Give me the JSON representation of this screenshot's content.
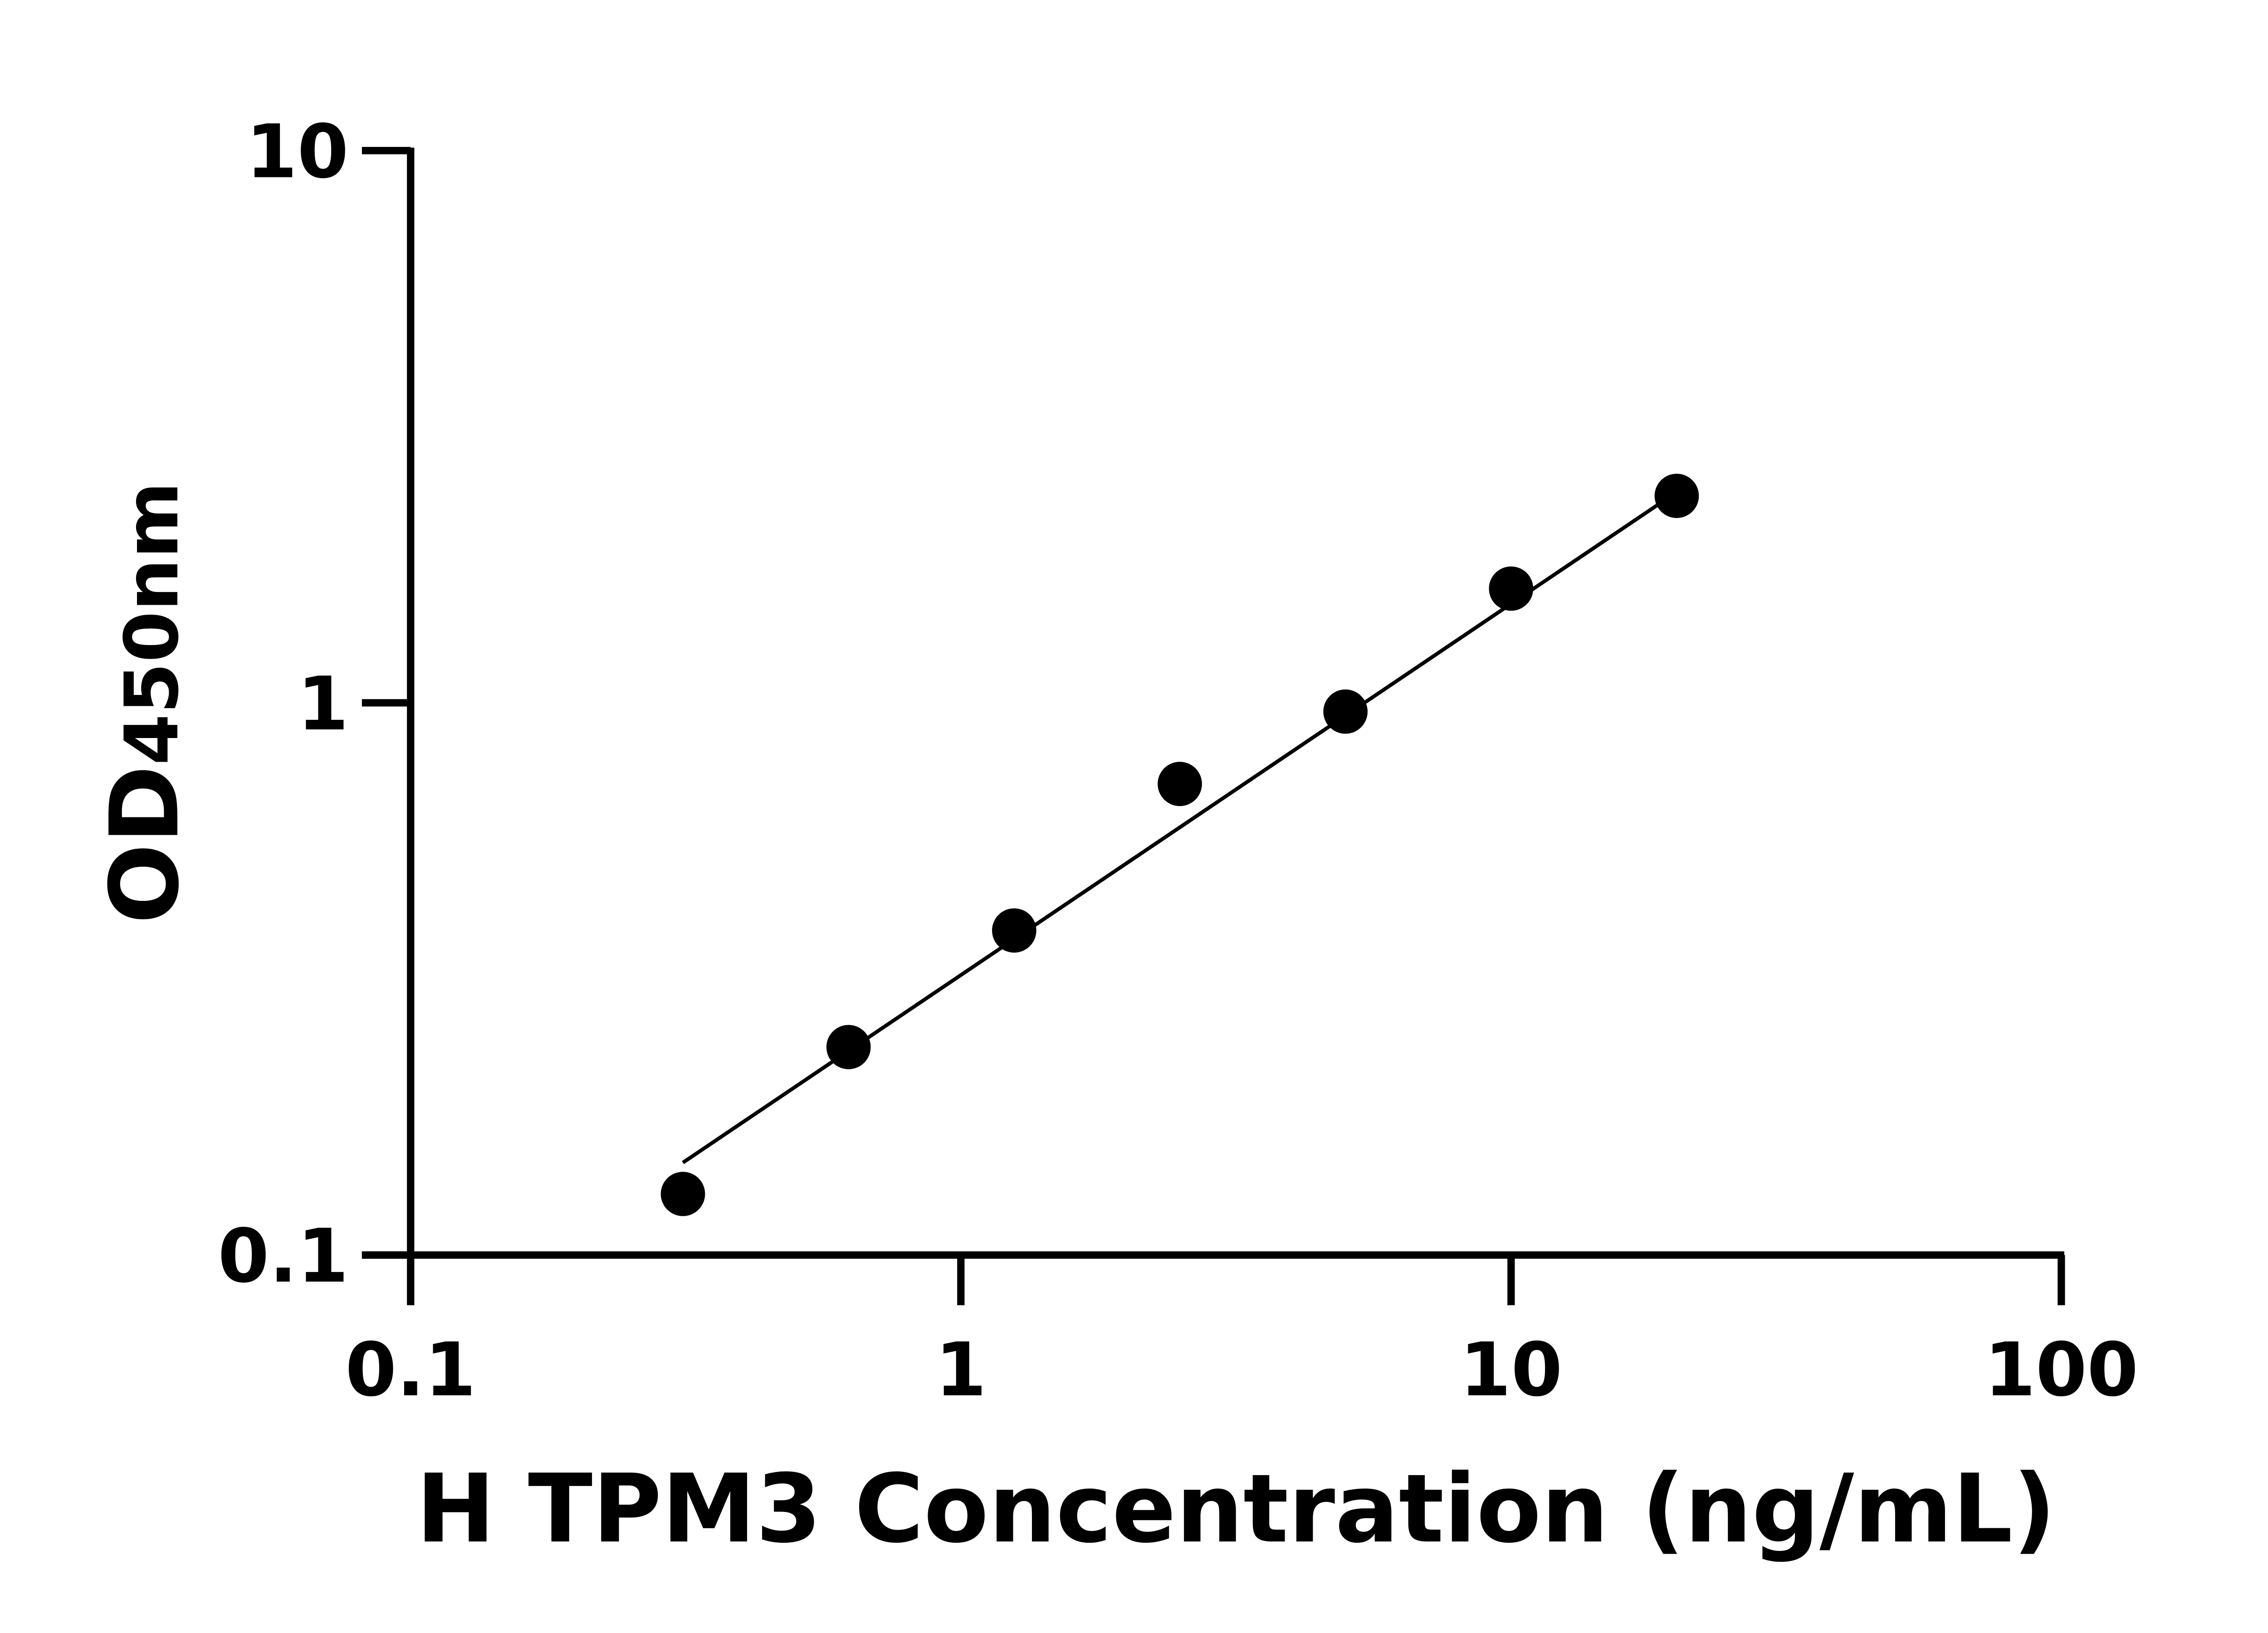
{
  "chart_data": {
    "type": "scatter",
    "title": "",
    "xlabel": "H TPM3 Concentration (ng/mL)",
    "ylabel_main": "OD",
    "ylabel_sub": "450nm",
    "x_scale": "log",
    "y_scale": "log",
    "xlim": [
      0.1,
      100
    ],
    "ylim": [
      0.1,
      10
    ],
    "x_ticks": [
      "0.1",
      "1",
      "10",
      "100"
    ],
    "y_ticks": [
      "0.1",
      "1",
      "10"
    ],
    "grid": false,
    "legend": "none",
    "points": [
      {
        "x": 0.3125,
        "y": 0.129
      },
      {
        "x": 0.625,
        "y": 0.238
      },
      {
        "x": 1.25,
        "y": 0.387
      },
      {
        "x": 2.5,
        "y": 0.713
      },
      {
        "x": 5,
        "y": 0.964
      },
      {
        "x": 10,
        "y": 1.61
      },
      {
        "x": 20,
        "y": 2.37
      }
    ],
    "fit_line": {
      "x_start": 0.3125,
      "y_start": 0.147,
      "x_end": 18.8,
      "y_end": 2.31
    },
    "colors": {
      "points": "#000000",
      "line": "#000000",
      "axes": "#000000"
    }
  }
}
